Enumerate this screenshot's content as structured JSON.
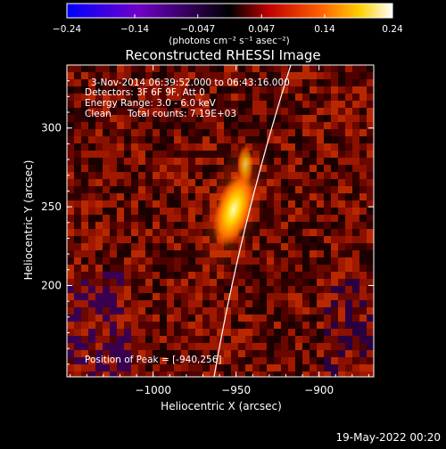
{
  "chart_data": {
    "type": "heatmap",
    "title": "Reconstructed RHESSI Image",
    "xlabel": "Heliocentric X (arcsec)",
    "ylabel": "Heliocentric Y (arcsec)",
    "xlim": [
      -1048,
      -952
    ],
    "ylim": [
      150,
      350
    ],
    "x_ticks": [
      -1000,
      -950,
      -900
    ],
    "x_tick_labels": [
      "−1000",
      "−950",
      "−900"
    ],
    "y_ticks": [
      200,
      250,
      300
    ],
    "y_tick_labels": [
      "200",
      "250",
      "300"
    ],
    "colorbar": {
      "vmin": -0.24,
      "vmax": 0.24,
      "ticks": [
        -0.24,
        -0.14,
        -0.047,
        0.047,
        0.14,
        0.24
      ],
      "tick_labels": [
        "−0.24",
        "−0.14",
        "−0.047",
        "0.047",
        "0.14",
        "0.24"
      ],
      "unit_label": "(photons cm⁻² s⁻¹ asec⁻²)",
      "colors": [
        "#0000ff",
        "#8000c0",
        "#000000",
        "#c00000",
        "#ff8000",
        "#ffff00",
        "#ffffff"
      ]
    },
    "peak": {
      "x": -940,
      "y": 256,
      "value": 0.24
    },
    "annotations": {
      "time_range": "3-Nov-2014 06:39:52.000 to 06:43:16.000",
      "detectors": "Detectors: 3F 6F 9F, Att 0",
      "energy": "Energy Range: 3.0 - 6.0 keV",
      "method": "Clean",
      "total_counts": "Total counts: 7.19E+03",
      "peak_position": "Position of Peak = [-940,256]"
    },
    "grid": false
  },
  "footer": {
    "timestamp": "19-May-2022 00:20"
  }
}
